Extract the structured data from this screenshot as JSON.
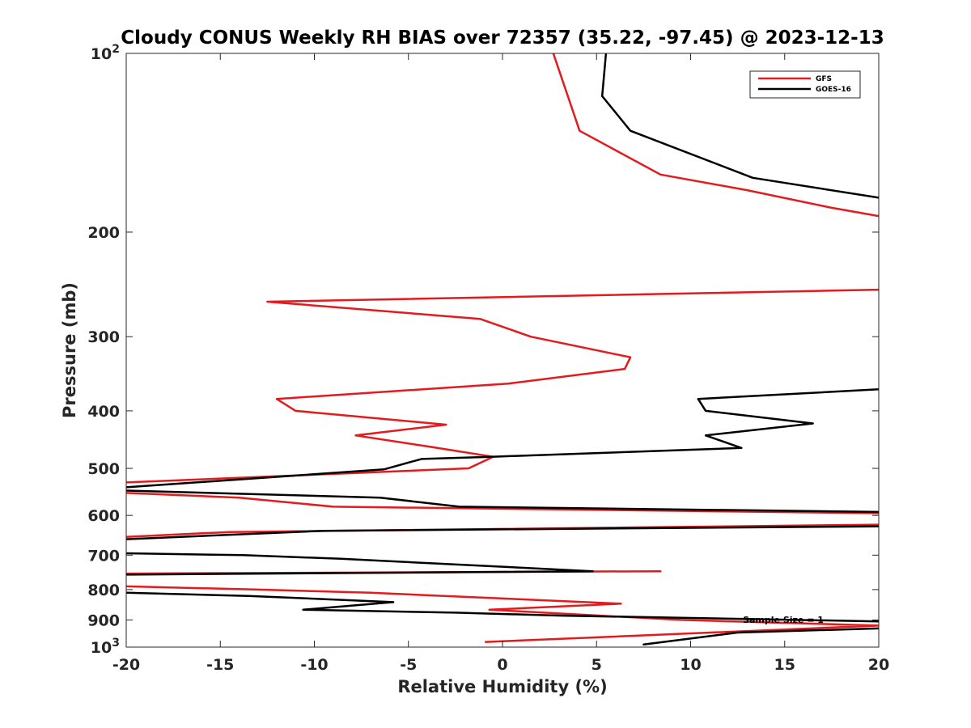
{
  "chart_data": {
    "type": "line",
    "title": "Cloudy CONUS Weekly RH BIAS over 72357 (35.22, -97.45) @ 2023-12-13",
    "xlabel": "Relative Humidity (%)",
    "ylabel": "Pressure (mb)",
    "xlim": [
      -20,
      20
    ],
    "ylim": [
      100,
      1000
    ],
    "y_scale": "log",
    "y_reversed": true,
    "x_ticks": [
      -20,
      -15,
      -10,
      -5,
      0,
      5,
      10,
      15,
      20
    ],
    "x_tick_labels": [
      "-20",
      "-15",
      "-10",
      "-5",
      "0",
      "5",
      "10",
      "15",
      "20"
    ],
    "y_ticks": [
      {
        "value": 100,
        "base": "10",
        "exp": "2"
      },
      {
        "value": 200,
        "label": "200"
      },
      {
        "value": 300,
        "label": "300"
      },
      {
        "value": 400,
        "label": "400"
      },
      {
        "value": 500,
        "label": "500"
      },
      {
        "value": 600,
        "label": "600"
      },
      {
        "value": 700,
        "label": "700"
      },
      {
        "value": 800,
        "label": "800"
      },
      {
        "value": 900,
        "label": "900"
      },
      {
        "value": 1000,
        "base": "10",
        "exp": "3"
      }
    ],
    "grid": false,
    "legend_position": "top-right",
    "annotation": "Sample Size = 1",
    "series": [
      {
        "name": "GFS",
        "color": "#e41a1c",
        "points": [
          [
            2.7,
            100
          ],
          [
            4.1,
            135
          ],
          [
            8.4,
            160
          ],
          [
            13,
            170
          ],
          [
            17.5,
            182
          ],
          [
            20,
            188
          ],
          [
            null,
            null
          ],
          [
            20,
            250
          ],
          [
            -12.5,
            262
          ],
          [
            -1.2,
            280
          ],
          [
            1.5,
            300
          ],
          [
            6.8,
            325
          ],
          [
            6.5,
            340
          ],
          [
            0.3,
            360
          ],
          [
            -12,
            382
          ],
          [
            -11,
            400
          ],
          [
            -3,
            422
          ],
          [
            -7.8,
            440
          ],
          [
            -3.8,
            460
          ],
          [
            -0.5,
            478
          ],
          [
            -1.8,
            500
          ],
          [
            -20,
            528
          ],
          [
            null,
            null
          ],
          [
            -20,
            550
          ],
          [
            -14,
            560
          ],
          [
            -9,
            580
          ],
          [
            20,
            595
          ],
          [
            null,
            null
          ],
          [
            20,
            622
          ],
          [
            -14.5,
            640
          ],
          [
            -20,
            652
          ],
          [
            null,
            null
          ],
          [
            8.4,
            745
          ],
          [
            -20,
            752
          ],
          [
            null,
            null
          ],
          [
            -20,
            790
          ],
          [
            -13,
            800
          ],
          [
            -7,
            810
          ],
          [
            6.3,
            845
          ],
          [
            -0.7,
            865
          ],
          [
            9.5,
            900
          ],
          [
            20,
            920
          ],
          [
            -0.9,
            980
          ]
        ]
      },
      {
        "name": "GOES-16",
        "color": "#000000",
        "points": [
          [
            5.5,
            100
          ],
          [
            5.3,
            118
          ],
          [
            6.8,
            135
          ],
          [
            13.3,
            162
          ],
          [
            20,
            175
          ],
          [
            null,
            null
          ],
          [
            20,
            368
          ],
          [
            10.4,
            382
          ],
          [
            10.8,
            400
          ],
          [
            16.5,
            420
          ],
          [
            10.8,
            440
          ],
          [
            12.7,
            462
          ],
          [
            -0.6,
            478
          ],
          [
            -4.3,
            482
          ],
          [
            -6.3,
            502
          ],
          [
            -20,
            538
          ],
          [
            null,
            null
          ],
          [
            -20,
            545
          ],
          [
            -6.5,
            560
          ],
          [
            -2.3,
            580
          ],
          [
            20,
            592
          ],
          [
            null,
            null
          ],
          [
            20,
            626
          ],
          [
            -9.5,
            637
          ],
          [
            -20,
            658
          ],
          [
            null,
            null
          ],
          [
            -20,
            695
          ],
          [
            -13.8,
            700
          ],
          [
            -8.6,
            710
          ],
          [
            4.8,
            745
          ],
          [
            -20,
            755
          ],
          [
            null,
            null
          ],
          [
            -20,
            810
          ],
          [
            -13.5,
            820
          ],
          [
            -5.8,
            840
          ],
          [
            -10.6,
            865
          ],
          [
            -2.5,
            875
          ],
          [
            3.2,
            885
          ],
          [
            20,
            905
          ],
          [
            null,
            null
          ],
          [
            20,
            930
          ],
          [
            12.5,
            945
          ],
          [
            7.5,
            990
          ]
        ]
      }
    ]
  }
}
